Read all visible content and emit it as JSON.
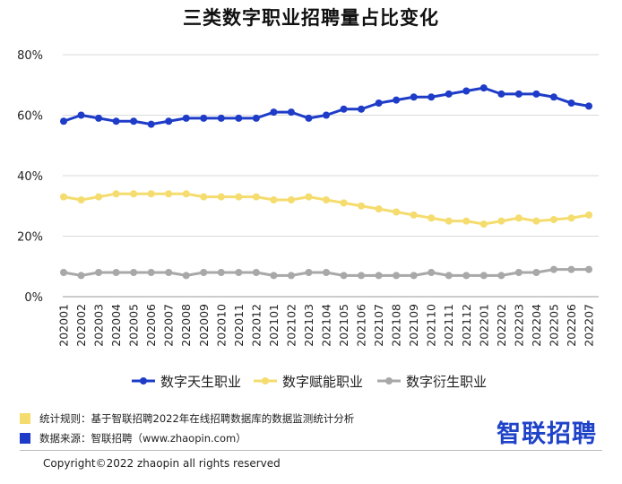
{
  "chart_data": {
    "type": "line",
    "title": "三类数字职业招聘量占比变化",
    "categories": [
      "202001",
      "202002",
      "202003",
      "202004",
      "202005",
      "202006",
      "202007",
      "202008",
      "202009",
      "202010",
      "202011",
      "202012",
      "202101",
      "202102",
      "202103",
      "202104",
      "202105",
      "202106",
      "202107",
      "202108",
      "202109",
      "202110",
      "202111",
      "202112",
      "202201",
      "202202",
      "202203",
      "202204",
      "202205",
      "202206",
      "202207"
    ],
    "y_ticks": [
      "0%",
      "20%",
      "40%",
      "60%",
      "80%"
    ],
    "ylim": [
      0,
      80
    ],
    "grid": "horizontal",
    "legend_position": "bottom",
    "series": [
      {
        "name": "数字天生职业",
        "color": "#1e3cc8",
        "values": [
          58,
          60,
          59,
          58,
          58,
          57,
          58,
          59,
          59,
          59,
          59,
          59,
          61,
          61,
          59,
          60,
          62,
          62,
          64,
          65,
          66,
          66,
          67,
          68,
          69,
          67,
          67,
          67,
          66,
          64,
          63
        ]
      },
      {
        "name": "数字赋能职业",
        "color": "#f5dc6e",
        "values": [
          33,
          32,
          33,
          34,
          34,
          34,
          34,
          34,
          33,
          33,
          33,
          33,
          32,
          32,
          33,
          32,
          31,
          30,
          29,
          28,
          27,
          26,
          25,
          25,
          24,
          25,
          26,
          25,
          25.5,
          26,
          27
        ]
      },
      {
        "name": "数字衍生职业",
        "color": "#a8a8a8",
        "values": [
          8,
          7,
          8,
          8,
          8,
          8,
          8,
          7,
          8,
          8,
          8,
          8,
          7,
          7,
          8,
          8,
          7,
          7,
          7,
          7,
          7,
          8,
          7,
          7,
          7,
          7,
          8,
          8,
          9,
          9,
          9
        ]
      }
    ]
  },
  "notes": [
    {
      "text": "统计规则：基于智联招聘2022年在线招聘数据库的数据监测统计分析",
      "color": "#f5dc6e"
    },
    {
      "text": "数据来源：智联招聘（www.zhaopin.com）",
      "color": "#1e3cc8"
    }
  ],
  "brand": "智联招聘",
  "copyright": "Copyright©2022 zhaopin all rights reserved"
}
